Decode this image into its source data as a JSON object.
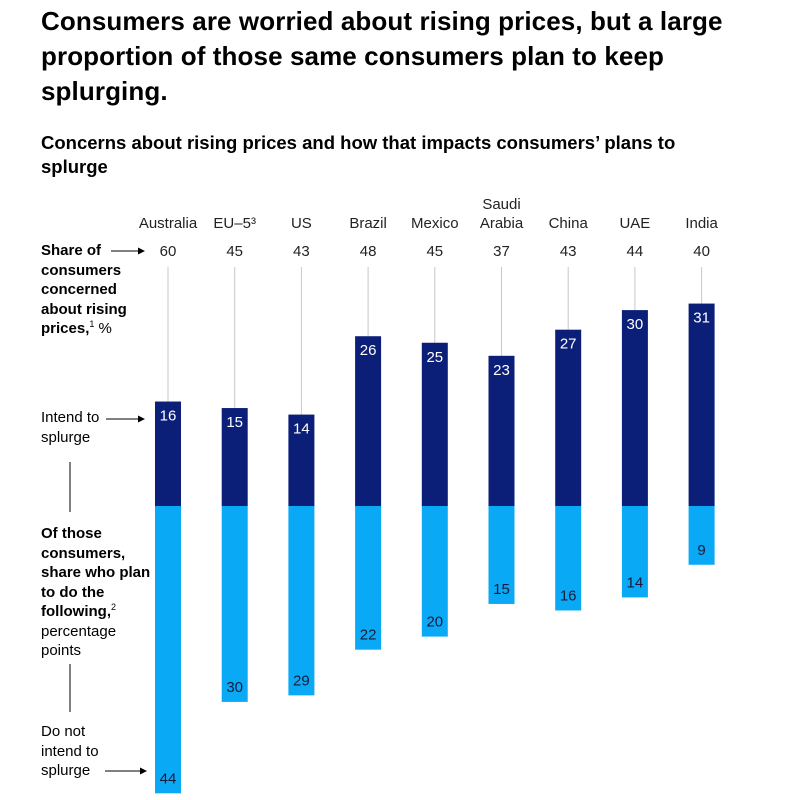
{
  "title": "Consumers are worried about rising prices, but a large proportion of those same consumers plan to keep splurging.",
  "subtitle": "Concerns about rising prices and how that impacts consumers’ plans to splurge",
  "side_labels": {
    "share_bold": "Share of consumers concerned about rising prices,",
    "share_sup": "1",
    "share_unit": " %",
    "intend": "Intend to splurge",
    "of_those_bold": "Of those consumers, share who plan to do the following,",
    "of_those_sup": "2",
    "of_those_unit": "percentage points",
    "do_not": "Do not intend to splurge"
  },
  "colors": {
    "intend": "#0c1f78",
    "not_intend": "#0aa9f5",
    "line": "#c8c8c8"
  },
  "chart_data": {
    "type": "bar",
    "categories": [
      "Australia",
      "EU–5³",
      "US",
      "Brazil",
      "Mexico",
      "Saudi Arabia",
      "China",
      "UAE",
      "India"
    ],
    "category_lines": [
      [
        "Australia"
      ],
      [
        "EU–5³"
      ],
      [
        "US"
      ],
      [
        "Brazil"
      ],
      [
        "Mexico"
      ],
      [
        "Saudi",
        "Arabia"
      ],
      [
        "China"
      ],
      [
        "UAE"
      ],
      [
        "India"
      ]
    ],
    "share_concerned": [
      60,
      45,
      43,
      48,
      45,
      37,
      43,
      44,
      40
    ],
    "series": [
      {
        "name": "Intend to splurge",
        "values": [
          16,
          15,
          14,
          26,
          25,
          23,
          27,
          30,
          31
        ]
      },
      {
        "name": "Do not intend to splurge",
        "values": [
          44,
          30,
          29,
          22,
          20,
          15,
          16,
          14,
          9
        ]
      }
    ]
  }
}
